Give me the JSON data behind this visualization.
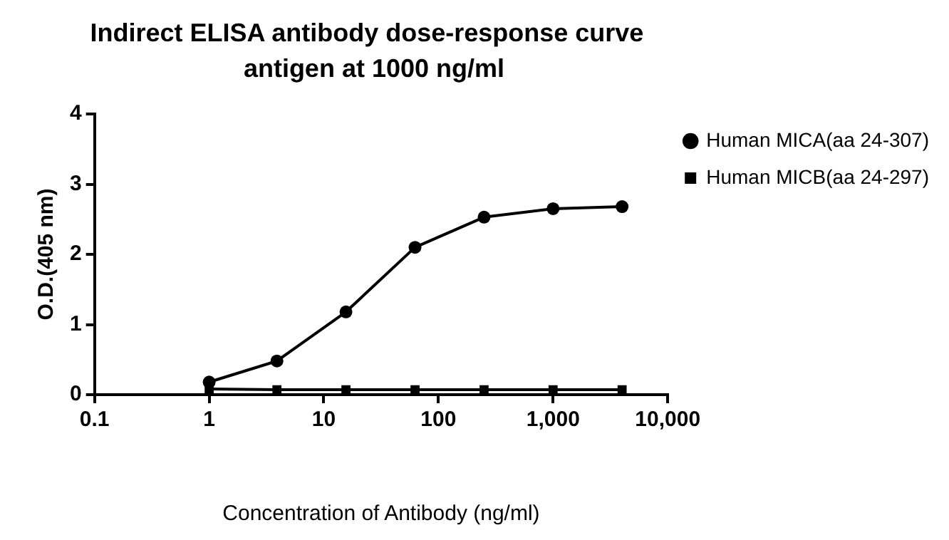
{
  "chart_data": {
    "type": "line",
    "title": "Indirect ELISA antibody dose-response curve",
    "subtitle": "antigen at 1000 ng/ml",
    "xlabel": "Concentration of Antibody (ng/ml)",
    "ylabel": "O.D.(405 nm)",
    "x": [
      1,
      3.9,
      15.6,
      62.5,
      250,
      1000,
      4000
    ],
    "series": [
      {
        "name": "Human MICA(aa 24-307)",
        "color": "#000000",
        "marker": "circle",
        "values": [
          0.18,
          0.48,
          1.18,
          2.1,
          2.53,
          2.65,
          2.68
        ]
      },
      {
        "name": "Human MICB(aa 24-297)",
        "color": "#000000",
        "marker": "square",
        "values": [
          0.08,
          0.07,
          0.07,
          0.07,
          0.07,
          0.07,
          0.07
        ]
      }
    ],
    "log": "x",
    "xlim": [
      0.1,
      10000
    ],
    "xticks": [
      {
        "value": 0.1,
        "label": "0.1"
      },
      1,
      10,
      100,
      {
        "value": 1000,
        "label": "1,000"
      },
      {
        "value": 10000,
        "label": "10,000"
      }
    ],
    "ylim": [
      0,
      4
    ],
    "yticks": [
      0,
      1,
      2,
      3,
      4
    ],
    "grid": false,
    "legend": "top right",
    "line_style": "solid"
  }
}
